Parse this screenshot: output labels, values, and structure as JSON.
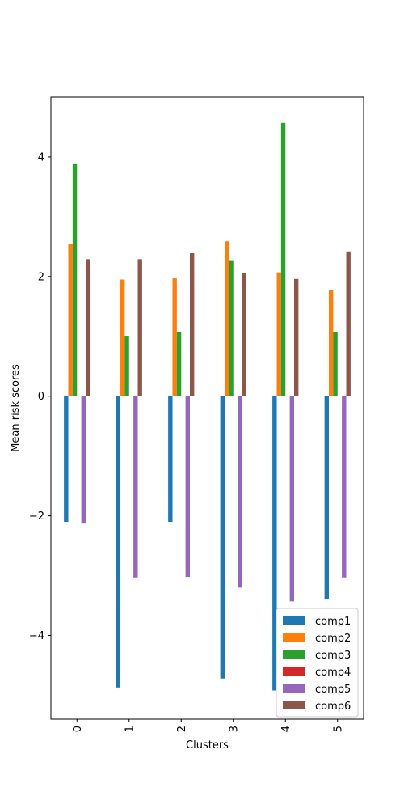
{
  "chart_data": {
    "type": "bar",
    "xlabel": "Clusters",
    "ylabel": "Mean risk scores",
    "categories": [
      "0",
      "1",
      "2",
      "3",
      "4",
      "5"
    ],
    "yticks": [
      -4,
      -2,
      0,
      2,
      4
    ],
    "ylim": [
      -5.4,
      5.0
    ],
    "legend_position": "bottom-right",
    "series": [
      {
        "name": "comp1",
        "color": "#1f77b4",
        "values": [
          -2.1,
          -4.87,
          -2.1,
          -4.72,
          -4.92,
          -3.4
        ]
      },
      {
        "name": "comp2",
        "color": "#ff7f0e",
        "values": [
          2.54,
          1.95,
          1.97,
          2.59,
          2.07,
          1.78
        ]
      },
      {
        "name": "comp3",
        "color": "#2ca02c",
        "values": [
          3.88,
          1.01,
          1.07,
          2.26,
          4.57,
          1.07
        ]
      },
      {
        "name": "comp4",
        "color": "#d62728",
        "values": [
          0,
          0,
          0,
          0,
          0,
          0
        ]
      },
      {
        "name": "comp5",
        "color": "#9467bd",
        "values": [
          -2.13,
          -3.03,
          -3.02,
          -3.2,
          -3.43,
          -3.03
        ]
      },
      {
        "name": "comp6",
        "color": "#8c564b",
        "values": [
          2.29,
          2.29,
          2.39,
          2.06,
          1.96,
          2.42
        ]
      }
    ]
  }
}
